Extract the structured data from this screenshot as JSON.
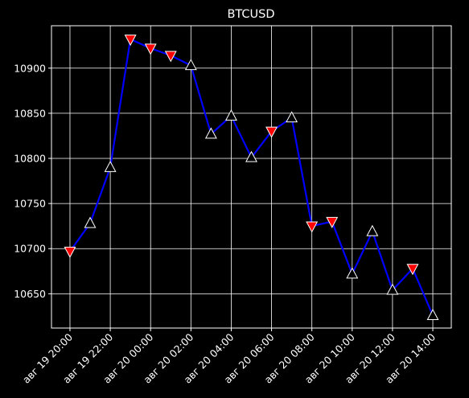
{
  "chart_data": {
    "type": "line",
    "title": "BTCUSD",
    "xlabel": "",
    "ylabel": "",
    "grid": true,
    "colors": {
      "background": "#000000",
      "axes": "#ffffff",
      "grid": "#ffffff",
      "line": "#0000ff",
      "up_marker_fill": "#000000",
      "up_marker_edge": "#ffffff",
      "down_marker_fill": "#ff0000",
      "down_marker_edge": "#ffffff",
      "text": "#ffffff"
    },
    "x_tick_labels": [
      "авг 19 20:00",
      "авг 19 22:00",
      "авг 20 00:00",
      "авг 20 02:00",
      "авг 20 04:00",
      "авг 20 06:00",
      "авг 20 08:00",
      "авг 20 10:00",
      "авг 20 12:00",
      "авг 20 14:00"
    ],
    "y_ticks": [
      10650,
      10700,
      10750,
      10800,
      10850,
      10900
    ],
    "ylim": [
      10612,
      10947
    ],
    "xlim": [
      "2020-08-19T19:05",
      "2020-08-20T14:55"
    ],
    "series": [
      {
        "x": [
          "2020-08-19T20:00",
          "2020-08-19T21:00",
          "2020-08-19T22:00",
          "2020-08-19T23:00",
          "2020-08-20T00:00",
          "2020-08-20T01:00",
          "2020-08-20T02:00",
          "2020-08-20T03:00",
          "2020-08-20T04:00",
          "2020-08-20T05:00",
          "2020-08-20T06:00",
          "2020-08-20T07:00",
          "2020-08-20T08:00",
          "2020-08-20T09:00",
          "2020-08-20T10:00",
          "2020-08-20T11:00",
          "2020-08-20T12:00",
          "2020-08-20T13:00",
          "2020-08-20T14:00"
        ],
        "values": [
          10697,
          10728,
          10790,
          10932,
          10922,
          10914,
          10903,
          10827,
          10847,
          10801,
          10830,
          10845,
          10725,
          10730,
          10672,
          10719,
          10654,
          10678,
          10626
        ],
        "markers": [
          "down",
          "up",
          "up",
          "down",
          "down",
          "down",
          "up",
          "up",
          "up",
          "up",
          "down",
          "up",
          "down",
          "down",
          "up",
          "up",
          "up",
          "down",
          "up"
        ]
      }
    ]
  }
}
